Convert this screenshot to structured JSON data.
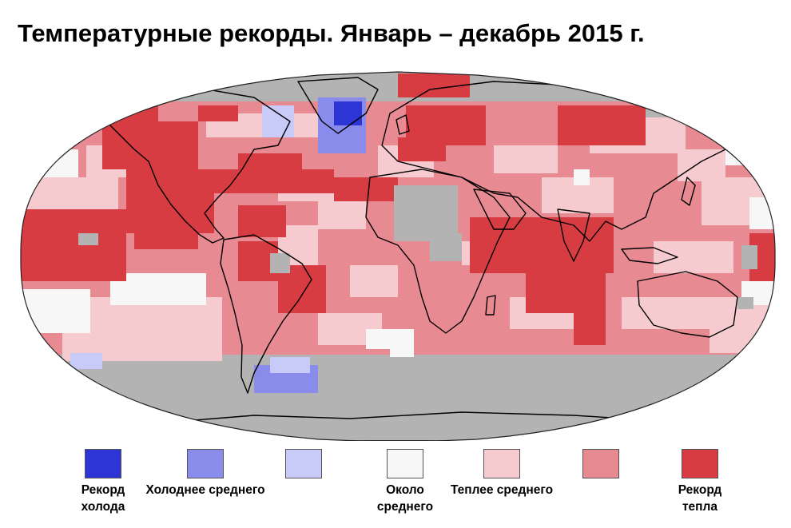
{
  "title": "Температурные рекорды. Январь – декабрь 2015 г.",
  "map": {
    "projection": "Robinson",
    "ocean_background": "#b3b3b3",
    "no_data_color": "#b3b3b3",
    "land_outline_color": "#000000"
  },
  "legend": [
    {
      "label": "Рекорд\nхолода",
      "color": "#2d35d6",
      "category": "record_cold"
    },
    {
      "label": "Холоднее среднего",
      "color": "#8a8cec",
      "category": "below_average"
    },
    {
      "label": "",
      "color": "#c8caf8",
      "category": "much_below_light"
    },
    {
      "label": "Около\nсреднего",
      "color": "#f7f7f7",
      "category": "near_average"
    },
    {
      "label": "Теплее среднего",
      "color": "#f6cbd0",
      "category": "above_average_light"
    },
    {
      "label": "",
      "color": "#e88a92",
      "category": "above_average"
    },
    {
      "label": "Рекорд\nтепла",
      "color": "#d63c41",
      "category": "record_warm"
    }
  ]
}
